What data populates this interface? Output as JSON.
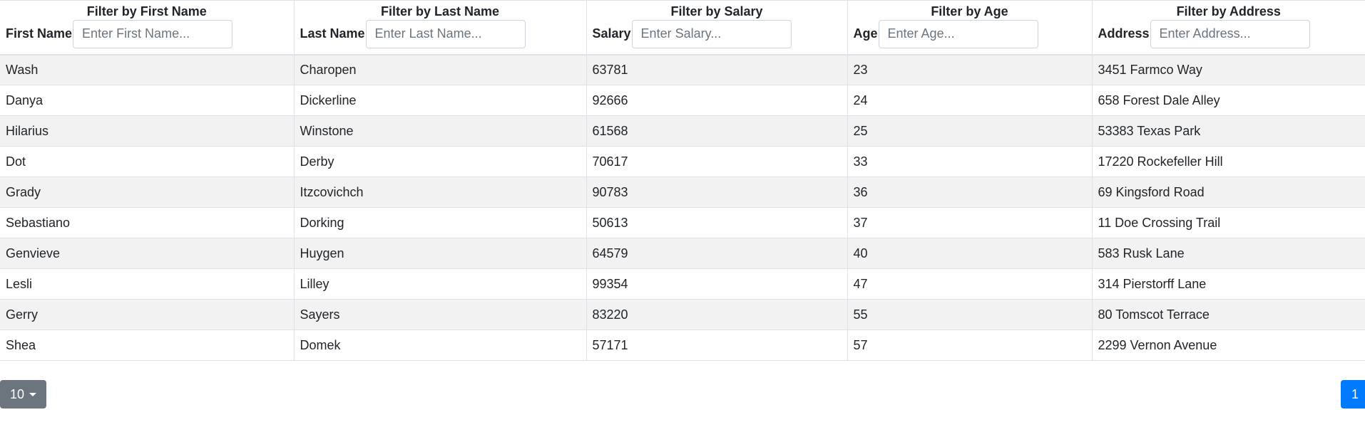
{
  "filters": [
    {
      "label": "Filter by First Name",
      "column": "First Name",
      "placeholder": "Enter First Name..."
    },
    {
      "label": "Filter by Last Name",
      "column": "Last Name",
      "placeholder": "Enter Last Name..."
    },
    {
      "label": "Filter by Salary",
      "column": "Salary",
      "placeholder": "Enter Salary..."
    },
    {
      "label": "Filter by Age",
      "column": "Age",
      "placeholder": "Enter Age..."
    },
    {
      "label": "Filter by Address",
      "column": "Address",
      "placeholder": "Enter Address..."
    }
  ],
  "rows": [
    [
      "Wash",
      "Charopen",
      "63781",
      "23",
      "3451 Farmco Way"
    ],
    [
      "Danya",
      "Dickerline",
      "92666",
      "24",
      "658 Forest Dale Alley"
    ],
    [
      "Hilarius",
      "Winstone",
      "61568",
      "25",
      "53383 Texas Park"
    ],
    [
      "Dot",
      "Derby",
      "70617",
      "33",
      "17220 Rockefeller Hill"
    ],
    [
      "Grady",
      "Itzcovichch",
      "90783",
      "36",
      "69 Kingsford Road"
    ],
    [
      "Sebastiano",
      "Dorking",
      "50613",
      "37",
      "11 Doe Crossing Trail"
    ],
    [
      "Genvieve",
      "Huygen",
      "64579",
      "40",
      "583 Rusk Lane"
    ],
    [
      "Lesli",
      "Lilley",
      "99354",
      "47",
      "314 Pierstorff Lane"
    ],
    [
      "Gerry",
      "Sayers",
      "83220",
      "55",
      "80 Tomscot Terrace"
    ],
    [
      "Shea",
      "Domek",
      "57171",
      "57",
      "2299 Vernon Avenue"
    ]
  ],
  "pagination": {
    "page_size": "10",
    "current_page": "1"
  },
  "colors": {
    "stripe": "#f2f2f2",
    "page_size_button": "#6c757d",
    "active_page": "#007bff"
  },
  "icons": {
    "page_size_caret": "caret-down-icon"
  }
}
